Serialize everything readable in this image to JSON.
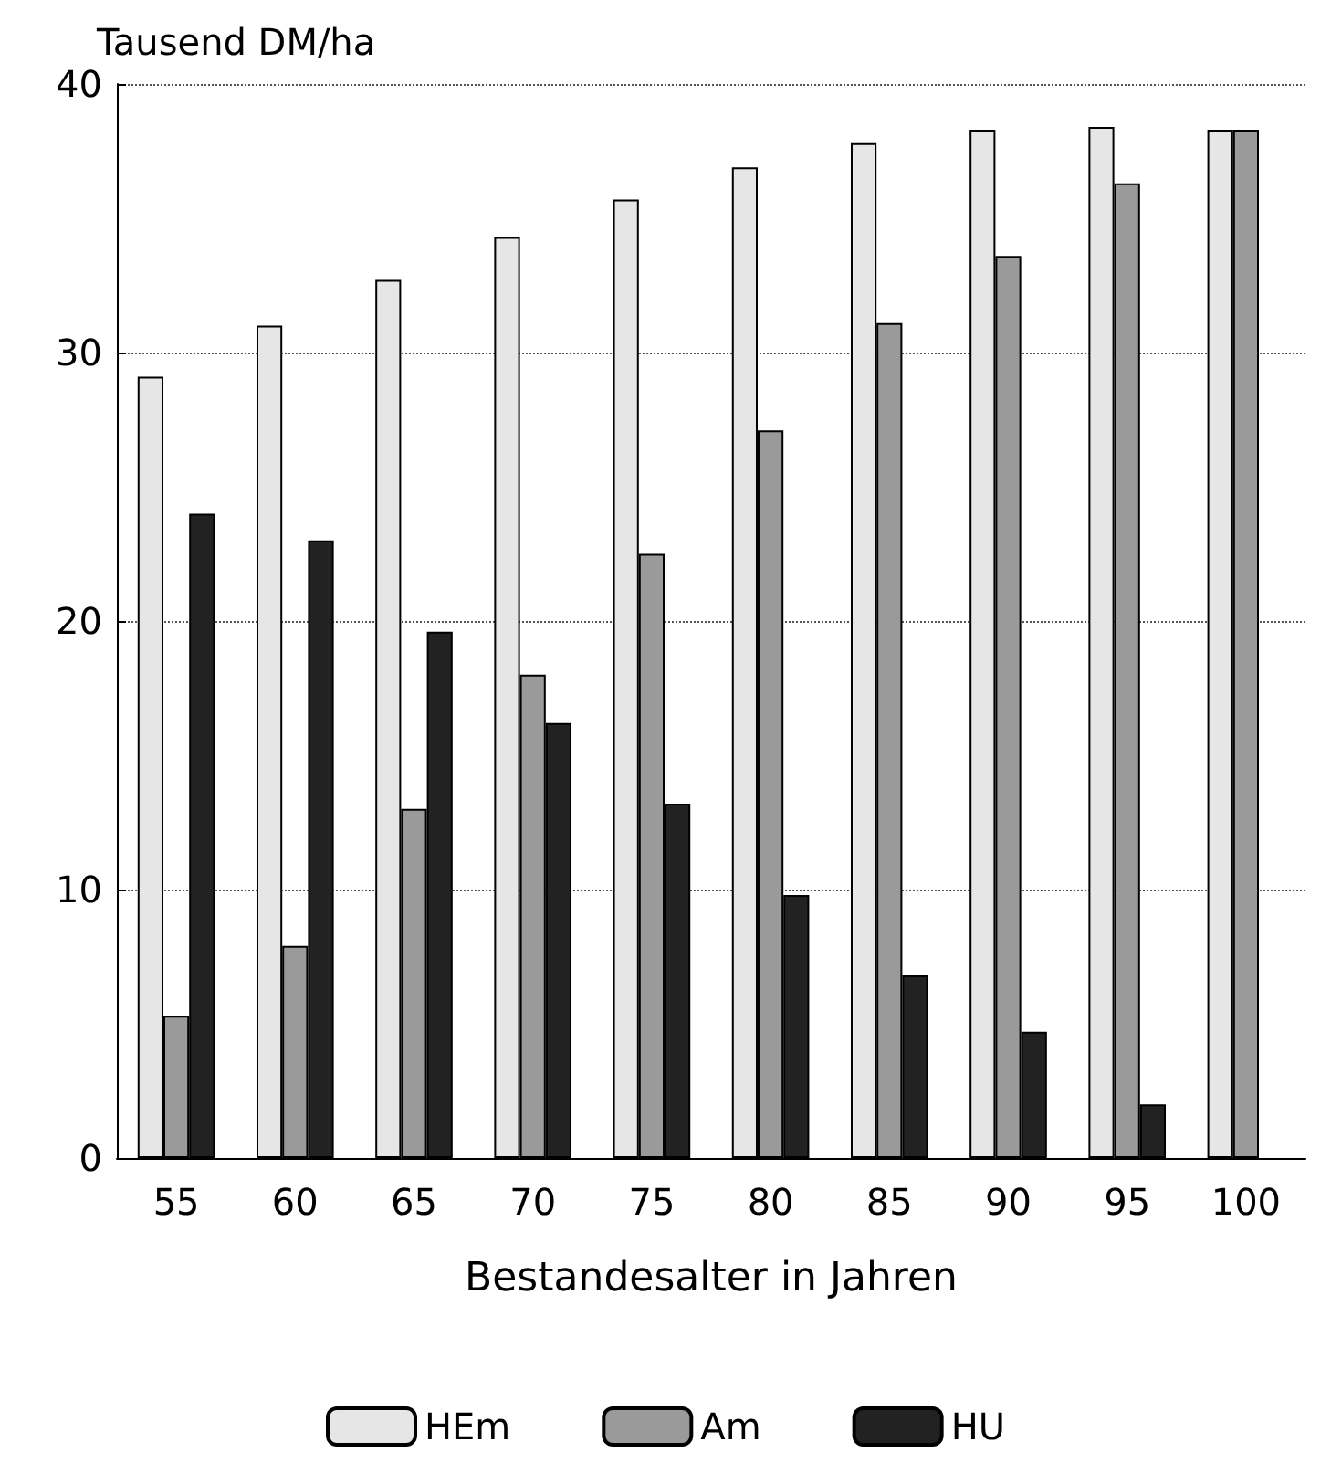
{
  "chart_data": {
    "type": "bar",
    "ylabel": "Tausend DM/ha",
    "xlabel": "Bestandesalter in Jahren",
    "categories": [
      "55",
      "60",
      "65",
      "70",
      "75",
      "80",
      "85",
      "90",
      "95",
      "100"
    ],
    "series": [
      {
        "name": "HEm",
        "color": "#e6e6e6",
        "values": [
          29.1,
          31.0,
          32.7,
          34.3,
          35.7,
          36.9,
          37.8,
          38.3,
          38.4,
          38.3
        ]
      },
      {
        "name": "Am",
        "color": "#9a9a9a",
        "values": [
          5.3,
          7.9,
          13.0,
          18.0,
          22.5,
          27.1,
          31.1,
          33.6,
          36.3,
          38.3
        ]
      },
      {
        "name": "HU",
        "color": "#222222",
        "values": [
          24.0,
          23.0,
          19.6,
          16.2,
          13.2,
          9.8,
          6.8,
          4.7,
          2.0,
          null
        ]
      }
    ],
    "ylim": [
      0,
      40
    ],
    "yticks": [
      0,
      10,
      20,
      30,
      40
    ],
    "grid": "y",
    "legend": "bottom"
  }
}
